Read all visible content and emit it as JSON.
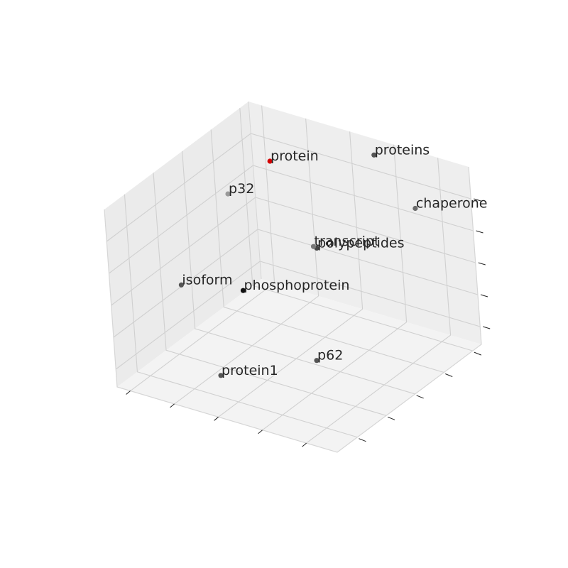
{
  "chart_data": {
    "type": "scatter",
    "projection": "3d",
    "title": "",
    "xlabel": "",
    "ylabel": "",
    "zlabel": "",
    "grid": true,
    "tick_labels_shown": false,
    "highlight_color": "#d40000",
    "pane_colors": {
      "left": "#ebebeb",
      "right": "#eeeeee",
      "floor": "#f3f3f3"
    },
    "grid_color": "#d0d0d0",
    "points": [
      {
        "label": "protein",
        "x": 0.15,
        "y": 0.1,
        "z": 0.78,
        "color": "#d40000",
        "highlight": true
      },
      {
        "label": "proteins",
        "x": 0.6,
        "y": 0.05,
        "z": 0.95,
        "color": "#555555"
      },
      {
        "label": "chaperone",
        "x": 0.95,
        "y": 0.3,
        "z": 0.93,
        "color": "#6b6b6b"
      },
      {
        "label": "p32",
        "x": 0.05,
        "y": 0.25,
        "z": 0.65,
        "color": "#9a9a9a"
      },
      {
        "label": "polypeptides",
        "x": 0.55,
        "y": 0.4,
        "z": 0.62,
        "color": "#444444"
      },
      {
        "label": "transcript",
        "x": 0.5,
        "y": 0.35,
        "z": 0.58,
        "color": "#777777"
      },
      {
        "label": "phosphoprotein",
        "x": 0.3,
        "y": 0.55,
        "z": 0.38,
        "color": "#111111"
      },
      {
        "label": "isoform",
        "x": 0.05,
        "y": 0.6,
        "z": 0.35,
        "color": "#555555"
      },
      {
        "label": "protein1",
        "x": 0.45,
        "y": 0.95,
        "z": 0.2,
        "color": "#555555"
      },
      {
        "label": "p62",
        "x": 0.9,
        "y": 0.95,
        "z": 0.45,
        "color": "#555555"
      }
    ]
  }
}
